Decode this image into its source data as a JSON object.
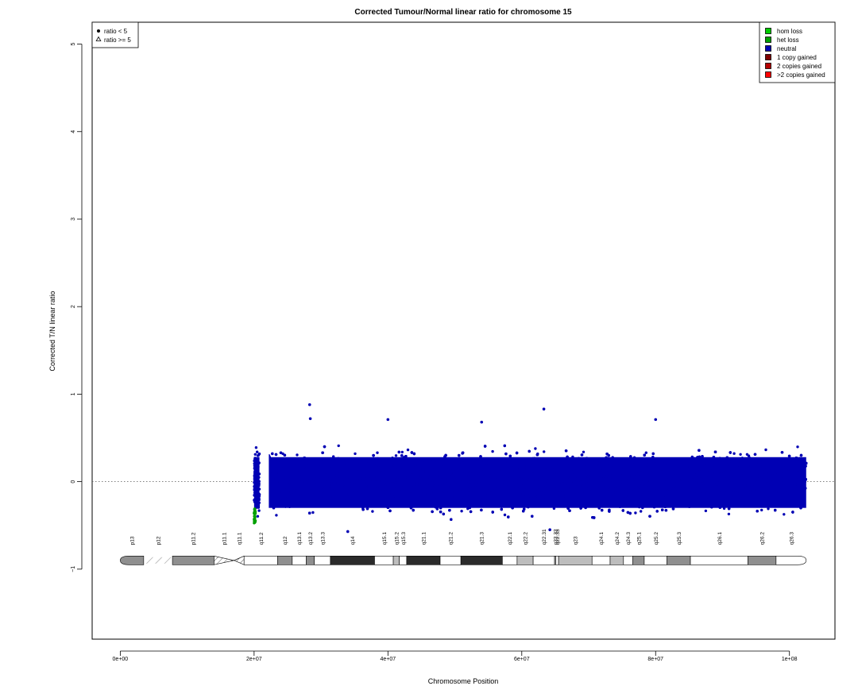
{
  "chart_data": {
    "type": "scatter",
    "title": "Corrected Tumour/Normal linear ratio for chromosome  15",
    "xlabel": "Chromosome Position",
    "ylabel": "Corrected T/N linear ratio",
    "xlim": [
      -4200000,
      106800000
    ],
    "ylim": [
      -1.8,
      5.25
    ],
    "xticks": [
      0,
      20000000,
      40000000,
      60000000,
      80000000,
      100000000
    ],
    "xtick_labels": [
      "0e+00",
      "2e+07",
      "4e+07",
      "6e+07",
      "8e+07",
      "1e+08"
    ],
    "yticks": [
      -1,
      0,
      1,
      2,
      3,
      4,
      5
    ],
    "ytick_labels": [
      "−1",
      "0",
      "1",
      "2",
      "3",
      "4",
      "5"
    ],
    "reference_line_y": 0,
    "legend_shape": {
      "position": "top-left",
      "entries": [
        {
          "label": "ratio < 5",
          "marker": "filled-circle"
        },
        {
          "label": "ratio >= 5",
          "marker": "open-triangle"
        }
      ]
    },
    "legend_state": {
      "position": "top-right",
      "entries": [
        {
          "label": "hom loss",
          "color": "#00cc00"
        },
        {
          "label": "het loss",
          "color": "#00a000"
        },
        {
          "label": "neutral",
          "color": "#0000b4"
        },
        {
          "label": "1 copy gained",
          "color": "#7f0000"
        },
        {
          "label": "2 copies gained",
          "color": "#b40000"
        },
        {
          "label": ">2 copies gained",
          "color": "#ff0000"
        }
      ]
    },
    "series": [
      {
        "name": "neutral",
        "color": "#0000b4",
        "x_range": [
          20000000,
          102500000
        ],
        "y_center": 0,
        "y_band": [
          -0.45,
          0.55
        ]
      },
      {
        "name": "het loss",
        "color": "#00a000",
        "x_range": [
          20000000,
          20200000
        ],
        "y_range": [
          -0.48,
          -0.3
        ]
      }
    ],
    "outliers": [
      {
        "x": 28300000,
        "y": 0.88
      },
      {
        "x": 28400000,
        "y": 0.72
      },
      {
        "x": 40000000,
        "y": 0.71
      },
      {
        "x": 63300000,
        "y": 0.83
      },
      {
        "x": 80000000,
        "y": 0.71
      },
      {
        "x": 54000000,
        "y": 0.68
      },
      {
        "x": 34000000,
        "y": -0.57
      },
      {
        "x": 64200000,
        "y": -0.55
      }
    ],
    "ideogram": {
      "y": -0.9,
      "bands": [
        {
          "name": "p13",
          "start": 0,
          "end": 3500000,
          "stain": "gpos50"
        },
        {
          "name": "p12",
          "start": 3500000,
          "end": 7800000,
          "stain": "stalk"
        },
        {
          "name": "p11.2",
          "start": 7800000,
          "end": 14000000,
          "stain": "gpos50"
        },
        {
          "name": "p11.1",
          "start": 14000000,
          "end": 17000000,
          "stain": "acen"
        },
        {
          "name": "q11.1",
          "start": 17000000,
          "end": 18500000,
          "stain": "acen"
        },
        {
          "name": "q11.2",
          "start": 18500000,
          "end": 23500000,
          "stain": "gneg"
        },
        {
          "name": "q12",
          "start": 23500000,
          "end": 25700000,
          "stain": "gpos50"
        },
        {
          "name": "q13.1",
          "start": 25700000,
          "end": 27800000,
          "stain": "gneg"
        },
        {
          "name": "q13.2",
          "start": 27800000,
          "end": 29000000,
          "stain": "gpos50"
        },
        {
          "name": "q13.3",
          "start": 29000000,
          "end": 31400000,
          "stain": "gneg"
        },
        {
          "name": "q14",
          "start": 31400000,
          "end": 38000000,
          "stain": "gpos75"
        },
        {
          "name": "q15.1",
          "start": 38000000,
          "end": 40800000,
          "stain": "gneg"
        },
        {
          "name": "q15.2",
          "start": 40800000,
          "end": 41700000,
          "stain": "gpos25"
        },
        {
          "name": "q15.3",
          "start": 41700000,
          "end": 42800000,
          "stain": "gneg"
        },
        {
          "name": "q21.1",
          "start": 42800000,
          "end": 47800000,
          "stain": "gpos75"
        },
        {
          "name": "q21.2",
          "start": 47800000,
          "end": 50900000,
          "stain": "gneg"
        },
        {
          "name": "q21.3",
          "start": 50900000,
          "end": 57100000,
          "stain": "gpos75"
        },
        {
          "name": "q22.1",
          "start": 57100000,
          "end": 59300000,
          "stain": "gneg"
        },
        {
          "name": "q22.2",
          "start": 59300000,
          "end": 61700000,
          "stain": "gpos25"
        },
        {
          "name": "q22.31",
          "start": 61700000,
          "end": 64900000,
          "stain": "gneg"
        },
        {
          "name": "q22.32",
          "start": 64900000,
          "end": 65100000,
          "stain": "gpos25"
        },
        {
          "name": "q22.33",
          "start": 65100000,
          "end": 65500000,
          "stain": "gneg"
        },
        {
          "name": "q23",
          "start": 65500000,
          "end": 70500000,
          "stain": "gpos25"
        },
        {
          "name": "q24.1",
          "start": 70500000,
          "end": 73200000,
          "stain": "gneg"
        },
        {
          "name": "q24.2",
          "start": 73200000,
          "end": 75200000,
          "stain": "gpos25"
        },
        {
          "name": "q24.3",
          "start": 75200000,
          "end": 76600000,
          "stain": "gneg"
        },
        {
          "name": "q25.1",
          "start": 76600000,
          "end": 78300000,
          "stain": "gpos50"
        },
        {
          "name": "q25.2",
          "start": 78300000,
          "end": 81700000,
          "stain": "gneg"
        },
        {
          "name": "q25.3",
          "start": 81700000,
          "end": 85200000,
          "stain": "gpos50"
        },
        {
          "name": "q26.1",
          "start": 85200000,
          "end": 93800000,
          "stain": "gneg"
        },
        {
          "name": "q26.2",
          "start": 93800000,
          "end": 98000000,
          "stain": "gpos50"
        },
        {
          "name": "q26.3",
          "start": 98000000,
          "end": 102500000,
          "stain": "gneg"
        }
      ]
    },
    "grid": false
  }
}
